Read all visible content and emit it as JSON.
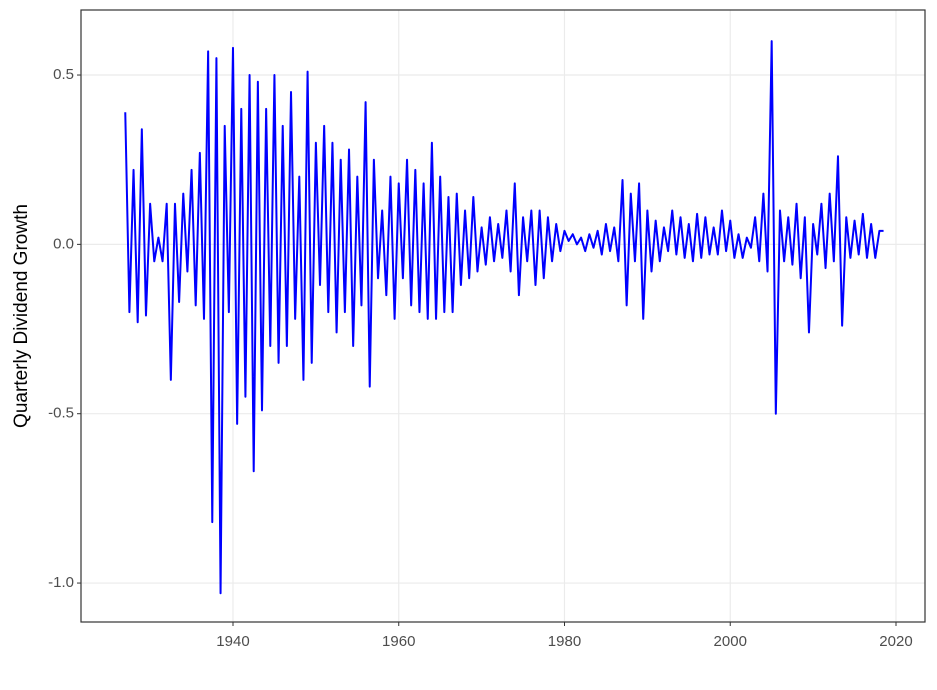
{
  "chart_data": {
    "type": "line",
    "y_label": "Quarterly Dividend Growth",
    "x": [
      1927,
      1927.5,
      1928,
      1928.5,
      1929,
      1929.5,
      1930,
      1930.5,
      1931,
      1931.5,
      1932,
      1932.5,
      1933,
      1933.5,
      1934,
      1934.5,
      1935,
      1935.5,
      1936,
      1936.5,
      1937,
      1937.5,
      1938,
      1938.5,
      1939,
      1939.5,
      1940,
      1940.5,
      1941,
      1941.5,
      1942,
      1942.5,
      1943,
      1943.5,
      1944,
      1944.5,
      1945,
      1945.5,
      1946,
      1946.5,
      1947,
      1947.5,
      1948,
      1948.5,
      1949,
      1949.5,
      1950,
      1950.5,
      1951,
      1951.5,
      1952,
      1952.5,
      1953,
      1953.5,
      1954,
      1954.5,
      1955,
      1955.5,
      1956,
      1956.5,
      1957,
      1957.5,
      1958,
      1958.5,
      1959,
      1959.5,
      1960,
      1960.5,
      1961,
      1961.5,
      1962,
      1962.5,
      1963,
      1963.5,
      1964,
      1964.5,
      1965,
      1965.5,
      1966,
      1966.5,
      1967,
      1967.5,
      1968,
      1968.5,
      1969,
      1969.5,
      1970,
      1970.5,
      1971,
      1971.5,
      1972,
      1972.5,
      1973,
      1973.5,
      1974,
      1974.5,
      1975,
      1975.5,
      1976,
      1976.5,
      1977,
      1977.5,
      1978,
      1978.5,
      1979,
      1979.5,
      1980,
      1980.5,
      1981,
      1981.5,
      1982,
      1982.5,
      1983,
      1983.5,
      1984,
      1984.5,
      1985,
      1985.5,
      1986,
      1986.5,
      1987,
      1987.5,
      1988,
      1988.5,
      1989,
      1989.5,
      1990,
      1990.5,
      1991,
      1991.5,
      1992,
      1992.5,
      1993,
      1993.5,
      1994,
      1994.5,
      1995,
      1995.5,
      1996,
      1996.5,
      1997,
      1997.5,
      1998,
      1998.5,
      1999,
      1999.5,
      2000,
      2000.5,
      2001,
      2001.5,
      2002,
      2002.5,
      2003,
      2003.5,
      2004,
      2004.5,
      2005,
      2005.5,
      2006,
      2006.5,
      2007,
      2007.5,
      2008,
      2008.5,
      2009,
      2009.5,
      2010,
      2010.5,
      2011,
      2011.5,
      2012,
      2012.5,
      2013,
      2013.5,
      2014,
      2014.5,
      2015,
      2015.5,
      2016,
      2016.5,
      2017,
      2017.5,
      2018,
      2018.5
    ],
    "series": [
      {
        "color": "#0000ff",
        "values": [
          0.39,
          -0.2,
          0.22,
          -0.23,
          0.34,
          -0.21,
          0.12,
          -0.05,
          0.02,
          -0.05,
          0.12,
          -0.4,
          0.12,
          -0.17,
          0.15,
          -0.08,
          0.22,
          -0.18,
          0.27,
          -0.22,
          0.57,
          -0.82,
          0.55,
          -1.03,
          0.35,
          -0.2,
          0.58,
          -0.53,
          0.4,
          -0.45,
          0.5,
          -0.67,
          0.48,
          -0.49,
          0.4,
          -0.3,
          0.5,
          -0.35,
          0.35,
          -0.3,
          0.45,
          -0.22,
          0.2,
          -0.4,
          0.51,
          -0.35,
          0.3,
          -0.12,
          0.35,
          -0.2,
          0.3,
          -0.26,
          0.25,
          -0.2,
          0.28,
          -0.3,
          0.2,
          -0.18,
          0.42,
          -0.42,
          0.25,
          -0.1,
          0.1,
          -0.15,
          0.2,
          -0.22,
          0.18,
          -0.1,
          0.25,
          -0.18,
          0.22,
          -0.2,
          0.18,
          -0.22,
          0.3,
          -0.22,
          0.2,
          -0.2,
          0.14,
          -0.2,
          0.15,
          -0.12,
          0.1,
          -0.1,
          0.14,
          -0.08,
          0.05,
          -0.06,
          0.08,
          -0.05,
          0.06,
          -0.04,
          0.1,
          -0.08,
          0.18,
          -0.15,
          0.08,
          -0.05,
          0.1,
          -0.12,
          0.1,
          -0.1,
          0.08,
          -0.05,
          0.06,
          -0.02,
          0.04,
          0.01,
          0.03,
          0,
          0.02,
          -0.02,
          0.03,
          -0.01,
          0.04,
          -0.03,
          0.06,
          -0.02,
          0.05,
          -0.05,
          0.19,
          -0.18,
          0.15,
          -0.05,
          0.18,
          -0.22,
          0.1,
          -0.08,
          0.07,
          -0.05,
          0.05,
          -0.02,
          0.1,
          -0.03,
          0.08,
          -0.04,
          0.06,
          -0.05,
          0.09,
          -0.04,
          0.08,
          -0.03,
          0.05,
          -0.03,
          0.1,
          -0.02,
          0.07,
          -0.04,
          0.03,
          -0.04,
          0.02,
          -0.01,
          0.08,
          -0.05,
          0.15,
          -0.08,
          0.6,
          -0.5,
          0.1,
          -0.05,
          0.08,
          -0.06,
          0.12,
          -0.1,
          0.08,
          -0.26,
          0.06,
          -0.03,
          0.12,
          -0.07,
          0.15,
          -0.05,
          0.26,
          -0.24,
          0.08,
          -0.04,
          0.07,
          -0.03,
          0.09,
          -0.04,
          0.06,
          -0.04,
          0.04,
          0.04
        ]
      }
    ],
    "xlim": [
      1921.66,
      2023.5
    ],
    "ylim": [
      -1.115,
      0.692
    ],
    "xticks": [
      1940,
      1960,
      1980,
      2000,
      2020
    ],
    "yticks": [
      {
        "value": -1,
        "label": "-1.0"
      },
      -0.5,
      {
        "value": 0,
        "label": "0.0"
      },
      0.5
    ],
    "grid": true
  }
}
